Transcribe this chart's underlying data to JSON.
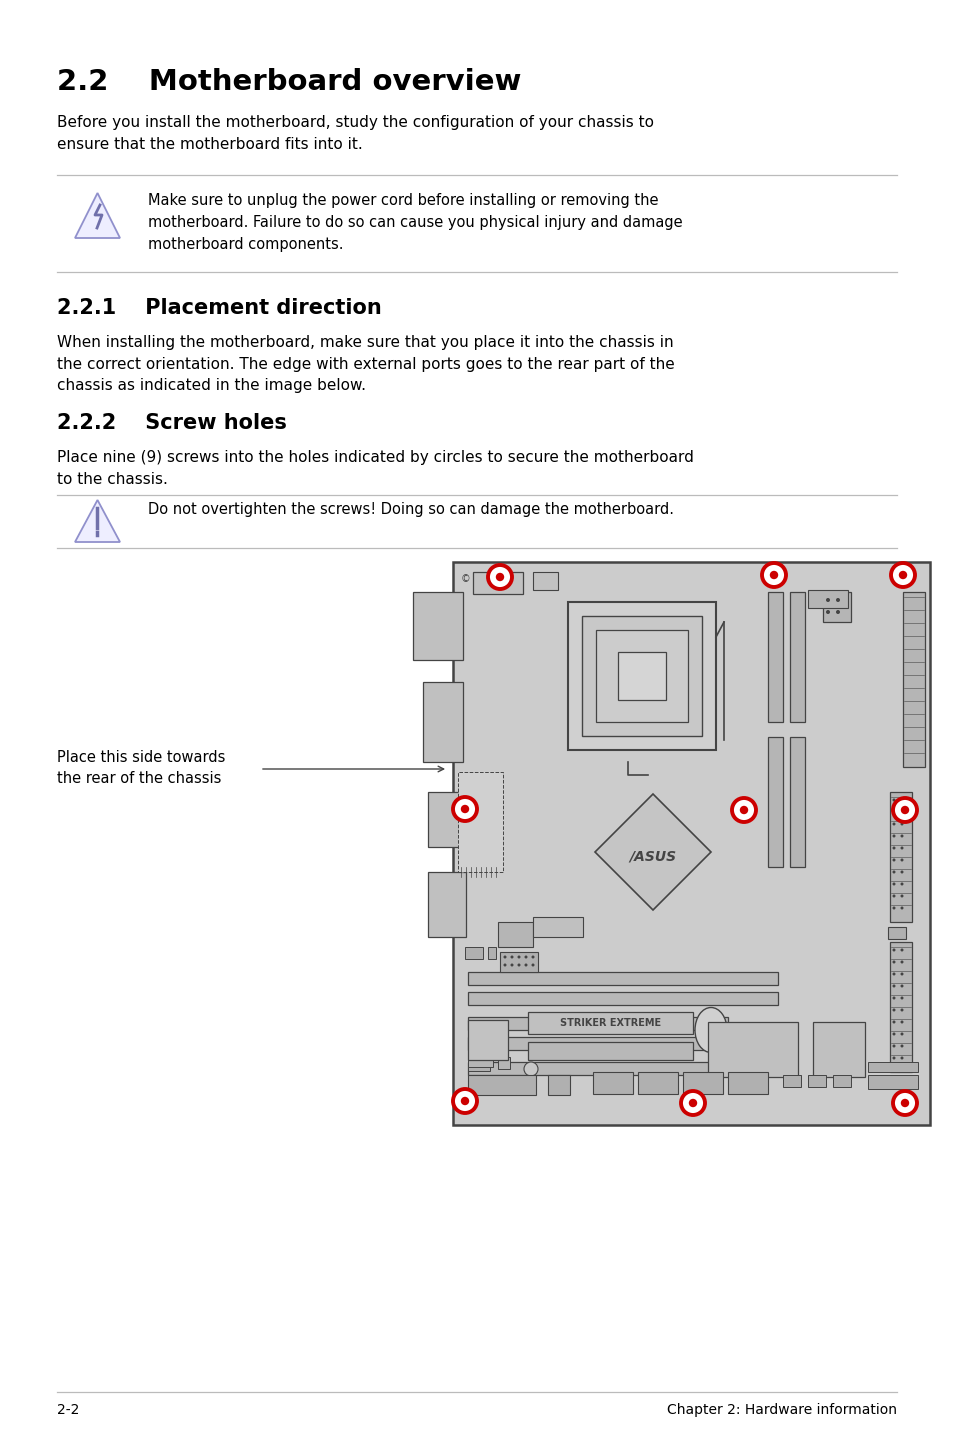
{
  "bg_color": "#ffffff",
  "title_22": "2.2    Motherboard overview",
  "body1": "Before you install the motherboard, study the configuration of your chassis to\nensure that the motherboard fits into it.",
  "warning1_text": "Make sure to unplug the power cord before installing or removing the\nmotherboard. Failure to do so can cause you physical injury and damage\nmotherboard components.",
  "section_221": "2.2.1    Placement direction",
  "body2": "When installing the motherboard, make sure that you place it into the chassis in\nthe correct orientation. The edge with external ports goes to the rear part of the\nchassis as indicated in the image below.",
  "section_222": "2.2.2    Screw holes",
  "body3": "Place nine (9) screws into the holes indicated by circles to secure the motherboard\nto the chassis.",
  "warning2_text": "Do not overtighten the screws! Doing so can damage the motherboard.",
  "label_side": "Place this side towards\nthe rear of the chassis",
  "footer_left": "2-2",
  "footer_right": "Chapter 2: Hardware information",
  "screw_color": "#cc0000",
  "board_fill": "#cccccc",
  "board_edge": "#444444",
  "comp_fill": "#b8b8b8",
  "comp_edge": "#444444"
}
